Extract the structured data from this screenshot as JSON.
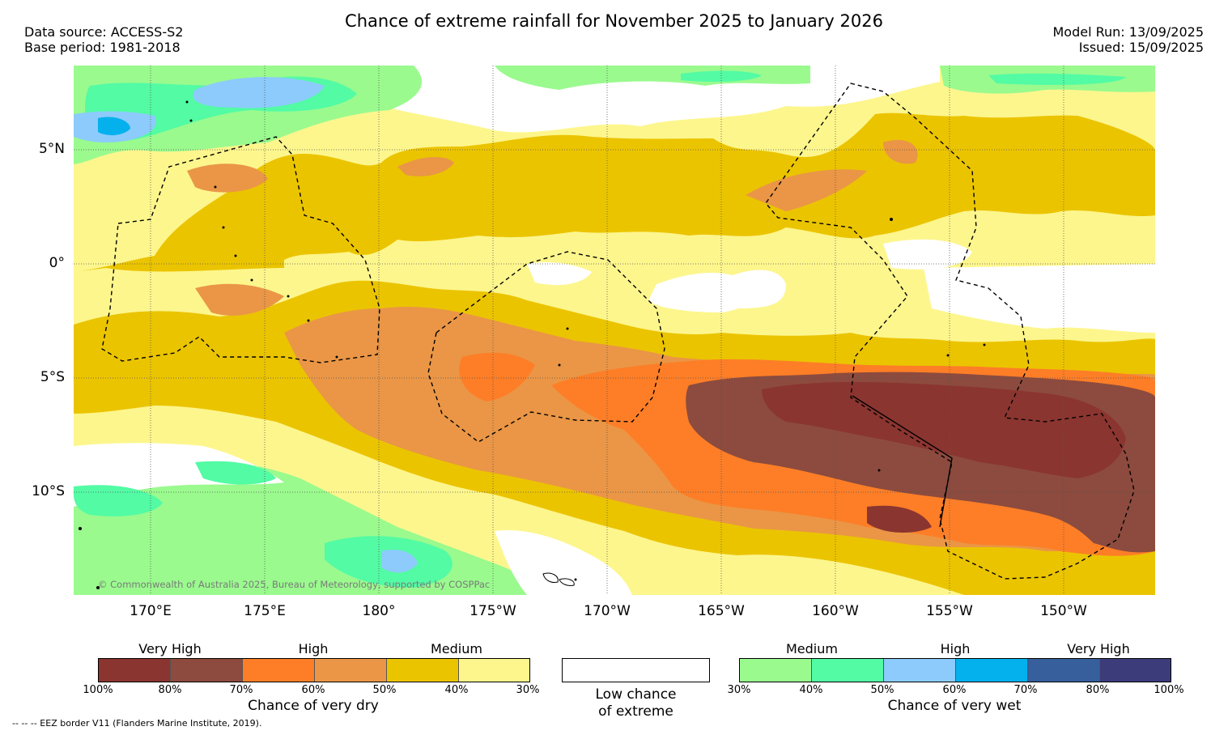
{
  "title": "Chance of extreme rainfall for November 2025 to January 2026",
  "meta_left": [
    "Data source: ACCESS-S2",
    "Base period: 1981-2018"
  ],
  "meta_right": [
    "Model Run: 13/09/2025",
    "Issued: 15/09/2025"
  ],
  "map": {
    "lat_labels": [
      "5°N",
      "0°",
      "5°S",
      "10°S"
    ],
    "lon_labels": [
      "170°E",
      "175°E",
      "180°",
      "175°W",
      "170°W",
      "165°W",
      "160°W",
      "155°W",
      "150°W"
    ],
    "copyright": "© Commonwealth of Australia 2025, Bureau of Meteorology, supported by COSPPac"
  },
  "legend_dry": {
    "headings": [
      "Very High",
      "High",
      "Medium"
    ],
    "colors": [
      "#8b3530",
      "#8c4b3e",
      "#fd7e27",
      "#ea9646",
      "#ebc400",
      "#fdf68d"
    ],
    "ticks": [
      "100%",
      "80%",
      "70%",
      "60%",
      "50%",
      "40%",
      "30%"
    ],
    "caption": "Chance of very dry"
  },
  "legend_low": {
    "caption_line1": "Low chance",
    "caption_line2": "of extreme",
    "color": "#ffffff"
  },
  "legend_wet": {
    "headings": [
      "Medium",
      "High",
      "Very High"
    ],
    "colors": [
      "#9afa8e",
      "#52fba4",
      "#8ccbfb",
      "#04b1ed",
      "#365f9b",
      "#3d3c7b"
    ],
    "ticks": [
      "30%",
      "40%",
      "50%",
      "60%",
      "70%",
      "80%",
      "100%"
    ],
    "caption": "Chance of very wet"
  },
  "eez_note": "--  --  -- EEZ border V11 (Flanders Marine Institute, 2019)."
}
